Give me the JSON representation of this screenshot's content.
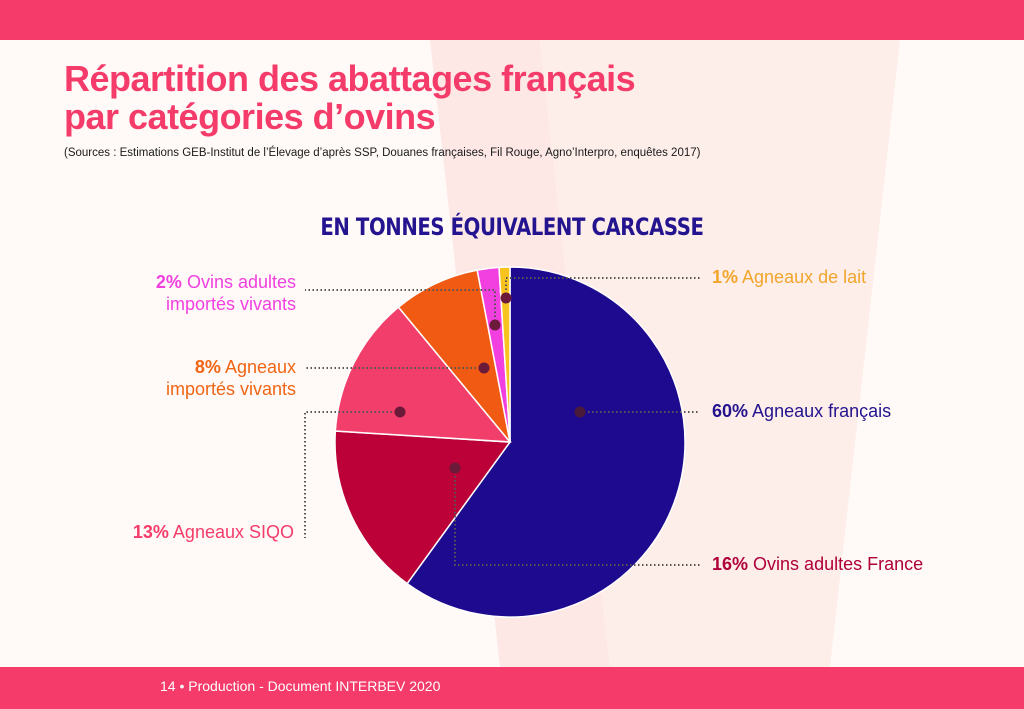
{
  "title": {
    "line1": "Répartition des abattages français",
    "line2": "par catégories d’ovins"
  },
  "sources": "(Sources : Estimations GEB-Institut de l’Élevage d’après SSP, Douanes françaises, Fil Rouge, Agno’Interpro, enquêtes 2017)",
  "subtitle": "En tonnes équivalent carcasse",
  "footer": "14 • Production - Document INTERBEV 2020",
  "colors": {
    "brand": "#f43b6a",
    "navy": "#24148f"
  },
  "chart_data": {
    "type": "pie",
    "unit": "%",
    "slices": [
      {
        "name": "Agneaux français",
        "pct_label": "60%",
        "value": 60,
        "color": "#1e0a8f"
      },
      {
        "name": "Ovins adultes France",
        "pct_label": "16%",
        "value": 16,
        "color": "#bb0137"
      },
      {
        "name": "Agneaux SIQO",
        "pct_label": "13%",
        "value": 13,
        "color": "#f23e6b"
      },
      {
        "name": "Agneaux importés vivants",
        "pct_label": "8%",
        "value": 8,
        "color": "#f15a12"
      },
      {
        "name": "Ovins adultes importés vivants",
        "pct_label": "2%",
        "value": 2,
        "color": "#f23fdf"
      },
      {
        "name": "Agneaux de lait",
        "pct_label": "1%",
        "value": 1,
        "color": "#f8c21f"
      }
    ]
  },
  "labels": {
    "agneaux_francais": {
      "pct": "60%",
      "line1": "Agneaux français",
      "color": "#24148f"
    },
    "ovins_adultes_france": {
      "pct": "16%",
      "line1": "Ovins adultes France",
      "color": "#b0003a"
    },
    "agneaux_siqo": {
      "pct": "13%",
      "line1": "Agneaux SIQO",
      "color": "#f43b6a"
    },
    "agneaux_importes": {
      "pct": "8%",
      "line1": "Agneaux",
      "line2": "importés vivants",
      "color": "#f06414"
    },
    "ovins_importes": {
      "pct": "2%",
      "line1": "Ovins adultes",
      "line2": "importés vivants",
      "color": "#f23fdf"
    },
    "agneaux_de_lait": {
      "pct": "1%",
      "line1": "Agneaux de lait",
      "color": "#f1a52c"
    }
  }
}
